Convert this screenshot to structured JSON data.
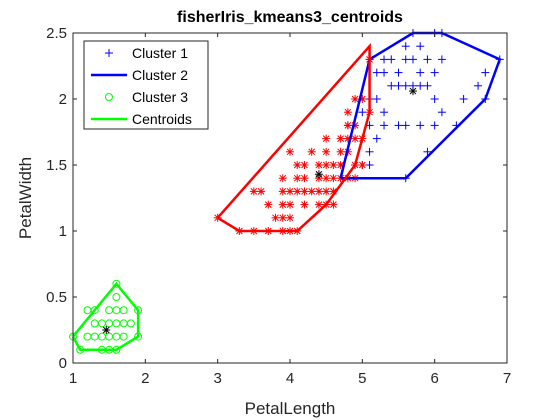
{
  "chart_data": {
    "type": "scatter",
    "title": "fisherIris_kmeans3_centroids",
    "xlabel": "PetalLength",
    "ylabel": "PetalWidth",
    "xlim": [
      1,
      7
    ],
    "ylim": [
      0,
      2.5
    ],
    "xticks": [
      "1",
      "2",
      "3",
      "4",
      "5",
      "6",
      "7"
    ],
    "yticks": [
      "0",
      "0.5",
      "1",
      "1.5",
      "2",
      "2.5"
    ],
    "xtick_values": [
      1,
      2,
      3,
      4,
      5,
      6,
      7
    ],
    "ytick_values": [
      0,
      0.5,
      1,
      1.5,
      2,
      2.5
    ],
    "grid": false,
    "legend_position": "top-left",
    "legend": [
      {
        "label": "Cluster 1",
        "marker": "plus",
        "line": false,
        "color": "#0000ff"
      },
      {
        "label": "Cluster 2",
        "marker": "none",
        "line": true,
        "color": "#0000ff"
      },
      {
        "label": "Cluster 3",
        "marker": "circle",
        "line": false,
        "color": "#00ff00"
      },
      {
        "label": "Centroids",
        "marker": "none",
        "line": true,
        "color": "#00ff00"
      }
    ],
    "series": [
      {
        "marker": "plus",
        "color": "#0000ff",
        "points": [
          [
            5.1,
            2.3
          ],
          [
            5.3,
            2.3
          ],
          [
            5.4,
            2.3
          ],
          [
            5.6,
            2.4
          ],
          [
            5.7,
            2.5
          ],
          [
            5.8,
            2.2
          ],
          [
            5.9,
            2.3
          ],
          [
            6.0,
            2.5
          ],
          [
            6.1,
            2.5
          ],
          [
            6.1,
            2.3
          ],
          [
            6.0,
            2.2
          ],
          [
            5.8,
            2.4
          ],
          [
            5.6,
            2.3
          ],
          [
            5.7,
            2.3
          ],
          [
            5.5,
            2.2
          ],
          [
            5.3,
            2.2
          ],
          [
            5.2,
            2.2
          ],
          [
            5.1,
            2.0
          ],
          [
            5.2,
            2.0
          ],
          [
            5.3,
            1.9
          ],
          [
            5.4,
            2.1
          ],
          [
            5.5,
            2.1
          ],
          [
            5.6,
            2.1
          ],
          [
            5.7,
            2.1
          ],
          [
            5.8,
            2.1
          ],
          [
            5.9,
            2.1
          ],
          [
            6.0,
            2.0
          ],
          [
            6.1,
            1.9
          ],
          [
            6.3,
            1.8
          ],
          [
            6.4,
            2.0
          ],
          [
            6.6,
            2.1
          ],
          [
            6.7,
            2.2
          ],
          [
            6.7,
            2.0
          ],
          [
            6.9,
            2.3
          ],
          [
            5.0,
            1.9
          ],
          [
            5.1,
            1.8
          ],
          [
            5.3,
            1.8
          ],
          [
            5.5,
            1.8
          ],
          [
            5.6,
            1.8
          ],
          [
            5.8,
            1.8
          ],
          [
            6.0,
            1.8
          ],
          [
            5.1,
            1.5
          ],
          [
            5.1,
            1.6
          ],
          [
            5.2,
            1.7
          ],
          [
            4.9,
            1.5
          ],
          [
            5.0,
            1.5
          ],
          [
            5.9,
            1.6
          ],
          [
            5.6,
            1.4
          ],
          [
            4.8,
            1.8
          ]
        ]
      },
      {
        "marker": "asterisk",
        "color": "#ff0000",
        "points": [
          [
            3.0,
            1.1
          ],
          [
            3.3,
            1.0
          ],
          [
            3.5,
            1.0
          ],
          [
            3.7,
            1.0
          ],
          [
            3.9,
            1.0
          ],
          [
            4.0,
            1.0
          ],
          [
            4.1,
            1.0
          ],
          [
            3.5,
            1.3
          ],
          [
            3.6,
            1.3
          ],
          [
            3.7,
            1.2
          ],
          [
            3.8,
            1.1
          ],
          [
            3.9,
            1.1
          ],
          [
            3.9,
            1.2
          ],
          [
            3.9,
            1.3
          ],
          [
            3.9,
            1.4
          ],
          [
            4.0,
            1.1
          ],
          [
            4.0,
            1.2
          ],
          [
            4.0,
            1.3
          ],
          [
            4.1,
            1.3
          ],
          [
            4.2,
            1.2
          ],
          [
            4.2,
            1.3
          ],
          [
            4.3,
            1.3
          ],
          [
            4.4,
            1.2
          ],
          [
            4.4,
            1.3
          ],
          [
            4.5,
            1.3
          ],
          [
            4.6,
            1.3
          ],
          [
            4.1,
            1.4
          ],
          [
            4.2,
            1.5
          ],
          [
            4.4,
            1.4
          ],
          [
            4.5,
            1.5
          ],
          [
            4.6,
            1.5
          ],
          [
            4.7,
            1.4
          ],
          [
            4.7,
            1.5
          ],
          [
            4.5,
            1.6
          ],
          [
            4.7,
            1.6
          ],
          [
            4.5,
            1.7
          ],
          [
            4.8,
            1.4
          ],
          [
            4.9,
            1.5
          ],
          [
            4.8,
            1.6
          ],
          [
            4.9,
            1.7
          ],
          [
            4.8,
            1.8
          ],
          [
            4.0,
            1.6
          ],
          [
            4.3,
            1.6
          ],
          [
            4.6,
            1.4
          ],
          [
            4.5,
            1.4
          ],
          [
            4.4,
            1.5
          ],
          [
            4.1,
            1.5
          ],
          [
            4.2,
            1.4
          ],
          [
            4.8,
            1.9
          ],
          [
            4.9,
            1.8
          ],
          [
            4.9,
            2.0
          ],
          [
            5.0,
            2.0
          ],
          [
            5.1,
            2.3
          ],
          [
            5.1,
            1.9
          ],
          [
            5.0,
            1.7
          ],
          [
            4.6,
            1.2
          ],
          [
            4.9,
            1.4
          ],
          [
            4.8,
            1.7
          ],
          [
            4.7,
            1.7
          ],
          [
            5.0,
            1.5
          ],
          [
            4.5,
            1.2
          ]
        ]
      },
      {
        "marker": "circle",
        "color": "#00ff00",
        "points": [
          [
            1.0,
            0.2
          ],
          [
            1.1,
            0.1
          ],
          [
            1.2,
            0.2
          ],
          [
            1.3,
            0.2
          ],
          [
            1.4,
            0.2
          ],
          [
            1.5,
            0.2
          ],
          [
            1.6,
            0.2
          ],
          [
            1.7,
            0.2
          ],
          [
            1.9,
            0.2
          ],
          [
            1.3,
            0.3
          ],
          [
            1.4,
            0.3
          ],
          [
            1.5,
            0.3
          ],
          [
            1.6,
            0.3
          ],
          [
            1.7,
            0.3
          ],
          [
            1.3,
            0.4
          ],
          [
            1.5,
            0.4
          ],
          [
            1.6,
            0.4
          ],
          [
            1.7,
            0.4
          ],
          [
            1.9,
            0.4
          ],
          [
            1.2,
            0.4
          ],
          [
            1.6,
            0.5
          ],
          [
            1.6,
            0.6
          ],
          [
            1.5,
            0.1
          ],
          [
            1.4,
            0.1
          ],
          [
            1.8,
            0.3
          ],
          [
            1.6,
            0.1
          ]
        ]
      }
    ],
    "hulls": [
      {
        "color": "#0000ff",
        "points": [
          [
            4.7,
            1.4
          ],
          [
            5.6,
            1.4
          ],
          [
            6.7,
            2.0
          ],
          [
            6.9,
            2.3
          ],
          [
            6.1,
            2.5
          ],
          [
            5.7,
            2.5
          ],
          [
            5.1,
            2.3
          ],
          [
            4.7,
            1.4
          ]
        ]
      },
      {
        "color": "#ff0000",
        "points": [
          [
            3.0,
            1.1
          ],
          [
            3.3,
            1.0
          ],
          [
            4.1,
            1.0
          ],
          [
            4.5,
            1.2
          ],
          [
            4.9,
            1.5
          ],
          [
            5.1,
            1.9
          ],
          [
            5.1,
            2.4
          ],
          [
            3.0,
            1.1
          ]
        ]
      },
      {
        "color": "#00ff00",
        "points": [
          [
            1.0,
            0.2
          ],
          [
            1.1,
            0.1
          ],
          [
            1.6,
            0.1
          ],
          [
            1.9,
            0.2
          ],
          [
            1.9,
            0.4
          ],
          [
            1.6,
            0.6
          ],
          [
            1.0,
            0.2
          ]
        ]
      }
    ],
    "centroids": {
      "marker": "asterisk",
      "color": "#000000",
      "points": [
        [
          5.7,
          2.06
        ],
        [
          4.4,
          1.43
        ],
        [
          1.46,
          0.25
        ]
      ]
    }
  }
}
